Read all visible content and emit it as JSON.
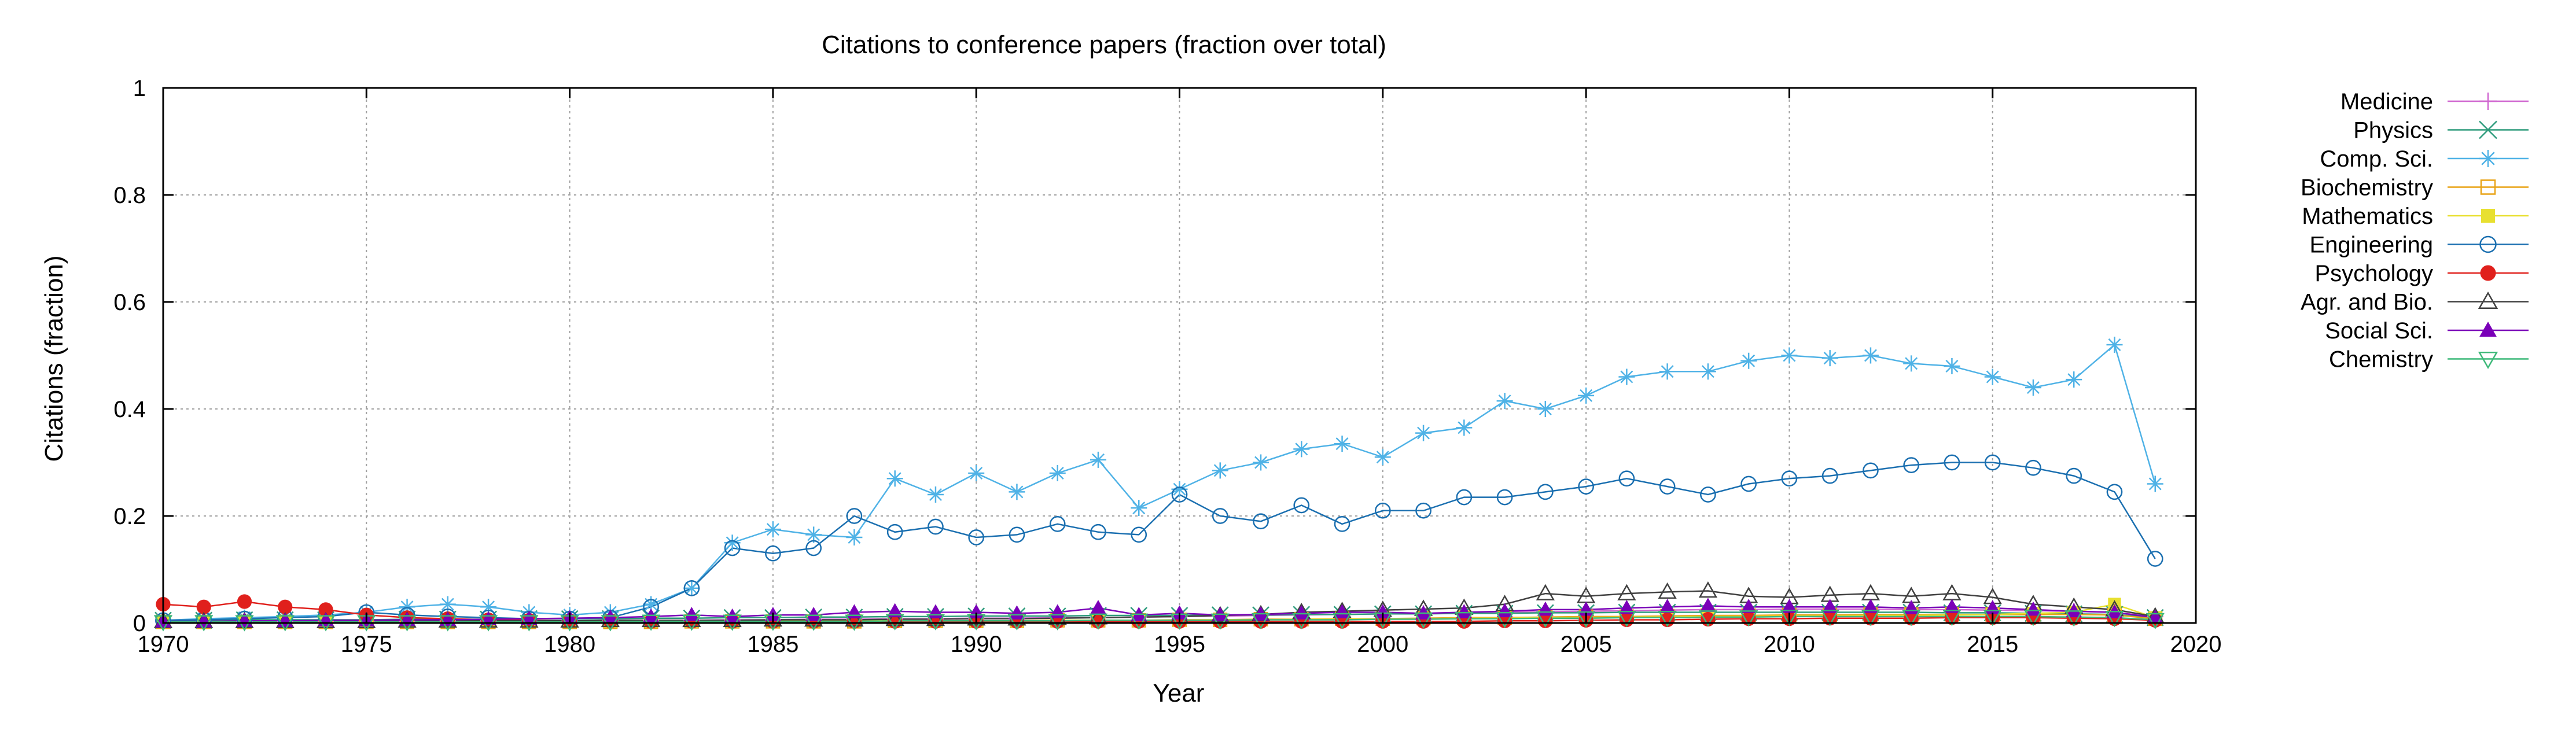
{
  "chart_data": {
    "type": "line",
    "title": "Citations to conference papers (fraction over total)",
    "xlabel": "Year",
    "ylabel": "Citations (fraction)",
    "xlim": [
      1970,
      2020
    ],
    "ylim": [
      0,
      1
    ],
    "xticks": [
      "1970",
      "1975",
      "1980",
      "1985",
      "1990",
      "1995",
      "2000",
      "2005",
      "2010",
      "2015",
      "2020"
    ],
    "yticks": [
      "0",
      "0.2",
      "0.4",
      "0.6",
      "0.8",
      "1"
    ],
    "grid": true,
    "legend_position": "outside-right",
    "x": [
      1970,
      1971,
      1972,
      1973,
      1974,
      1975,
      1976,
      1977,
      1978,
      1979,
      1980,
      1981,
      1982,
      1983,
      1984,
      1985,
      1986,
      1987,
      1988,
      1989,
      1990,
      1991,
      1992,
      1993,
      1994,
      1995,
      1996,
      1997,
      1998,
      1999,
      2000,
      2001,
      2002,
      2003,
      2004,
      2005,
      2006,
      2007,
      2008,
      2009,
      2010,
      2011,
      2012,
      2013,
      2014,
      2015,
      2016,
      2017,
      2018,
      2019
    ],
    "series": [
      {
        "name": "Medicine",
        "color": "#d066d0",
        "marker": "plus",
        "values": [
          0.002,
          0.003,
          0.003,
          0.003,
          0.003,
          0.003,
          0.003,
          0.004,
          0.004,
          0.004,
          0.004,
          0.005,
          0.005,
          0.005,
          0.006,
          0.006,
          0.007,
          0.007,
          0.008,
          0.008,
          0.009,
          0.009,
          0.01,
          0.01,
          0.011,
          0.012,
          0.013,
          0.014,
          0.015,
          0.016,
          0.017,
          0.018,
          0.019,
          0.02,
          0.021,
          0.022,
          0.023,
          0.024,
          0.025,
          0.025,
          0.026,
          0.026,
          0.026,
          0.025,
          0.025,
          0.024,
          0.023,
          0.022,
          0.02,
          0.012
        ]
      },
      {
        "name": "Physics",
        "color": "#2e9c7c",
        "marker": "x",
        "values": [
          0.005,
          0.005,
          0.006,
          0.006,
          0.006,
          0.006,
          0.007,
          0.007,
          0.007,
          0.008,
          0.008,
          0.008,
          0.009,
          0.009,
          0.01,
          0.01,
          0.011,
          0.011,
          0.012,
          0.012,
          0.013,
          0.013,
          0.013,
          0.014,
          0.014,
          0.014,
          0.015,
          0.015,
          0.016,
          0.016,
          0.017,
          0.017,
          0.018,
          0.018,
          0.019,
          0.019,
          0.02,
          0.02,
          0.02,
          0.02,
          0.02,
          0.02,
          0.02,
          0.02,
          0.019,
          0.019,
          0.018,
          0.017,
          0.016,
          0.01
        ]
      },
      {
        "name": "Comp. Sci.",
        "color": "#4fb2e6",
        "marker": "star",
        "values": [
          0.005,
          0.008,
          0.01,
          0.012,
          0.015,
          0.02,
          0.03,
          0.035,
          0.03,
          0.02,
          0.015,
          0.02,
          0.035,
          0.065,
          0.15,
          0.175,
          0.165,
          0.16,
          0.27,
          0.24,
          0.28,
          0.245,
          0.28,
          0.305,
          0.215,
          0.25,
          0.285,
          0.3,
          0.325,
          0.335,
          0.31,
          0.355,
          0.365,
          0.415,
          0.4,
          0.425,
          0.46,
          0.47,
          0.47,
          0.49,
          0.5,
          0.495,
          0.5,
          0.485,
          0.48,
          0.46,
          0.44,
          0.455,
          0.52,
          0.26
        ]
      },
      {
        "name": "Biochemistry",
        "color": "#e8a317",
        "marker": "open-square",
        "values": [
          0.002,
          0.002,
          0.002,
          0.002,
          0.002,
          0.002,
          0.002,
          0.002,
          0.002,
          0.002,
          0.002,
          0.002,
          0.002,
          0.003,
          0.003,
          0.003,
          0.003,
          0.003,
          0.004,
          0.004,
          0.004,
          0.004,
          0.005,
          0.005,
          0.005,
          0.006,
          0.006,
          0.007,
          0.007,
          0.008,
          0.008,
          0.009,
          0.01,
          0.01,
          0.011,
          0.012,
          0.012,
          0.013,
          0.014,
          0.014,
          0.015,
          0.015,
          0.016,
          0.016,
          0.016,
          0.016,
          0.016,
          0.016,
          0.015,
          0.008
        ]
      },
      {
        "name": "Mathematics",
        "color": "#e8e030",
        "marker": "filled-square",
        "values": [
          0.003,
          0.003,
          0.003,
          0.003,
          0.003,
          0.003,
          0.003,
          0.003,
          0.003,
          0.003,
          0.003,
          0.003,
          0.003,
          0.003,
          0.003,
          0.004,
          0.004,
          0.004,
          0.004,
          0.004,
          0.004,
          0.004,
          0.005,
          0.005,
          0.005,
          0.005,
          0.006,
          0.006,
          0.007,
          0.007,
          0.008,
          0.008,
          0.009,
          0.009,
          0.01,
          0.01,
          0.011,
          0.011,
          0.012,
          0.012,
          0.013,
          0.013,
          0.014,
          0.014,
          0.015,
          0.016,
          0.018,
          0.02,
          0.035,
          0.01
        ]
      },
      {
        "name": "Engineering",
        "color": "#1a6fb0",
        "marker": "open-circle",
        "values": [
          0.005,
          0.006,
          0.008,
          0.01,
          0.012,
          0.02,
          0.015,
          0.012,
          0.01,
          0.008,
          0.008,
          0.01,
          0.03,
          0.065,
          0.14,
          0.13,
          0.14,
          0.2,
          0.17,
          0.18,
          0.16,
          0.165,
          0.185,
          0.17,
          0.165,
          0.24,
          0.2,
          0.19,
          0.22,
          0.185,
          0.21,
          0.21,
          0.235,
          0.235,
          0.245,
          0.255,
          0.27,
          0.255,
          0.24,
          0.26,
          0.27,
          0.275,
          0.285,
          0.295,
          0.3,
          0.3,
          0.29,
          0.275,
          0.245,
          0.12
        ]
      },
      {
        "name": "Psychology",
        "color": "#e0201c",
        "marker": "filled-circle",
        "values": [
          0.035,
          0.03,
          0.04,
          0.03,
          0.025,
          0.015,
          0.01,
          0.008,
          0.006,
          0.005,
          0.004,
          0.004,
          0.003,
          0.003,
          0.003,
          0.003,
          0.003,
          0.003,
          0.003,
          0.003,
          0.003,
          0.003,
          0.003,
          0.003,
          0.003,
          0.003,
          0.003,
          0.003,
          0.003,
          0.003,
          0.003,
          0.003,
          0.003,
          0.004,
          0.004,
          0.005,
          0.006,
          0.006,
          0.007,
          0.008,
          0.008,
          0.009,
          0.009,
          0.009,
          0.01,
          0.01,
          0.01,
          0.009,
          0.008,
          0.005
        ]
      },
      {
        "name": "Agr. and Bio.",
        "color": "#404040",
        "marker": "open-triangle",
        "values": [
          0.003,
          0.003,
          0.003,
          0.003,
          0.003,
          0.003,
          0.004,
          0.004,
          0.004,
          0.004,
          0.004,
          0.005,
          0.005,
          0.005,
          0.005,
          0.006,
          0.006,
          0.006,
          0.007,
          0.007,
          0.008,
          0.008,
          0.009,
          0.01,
          0.011,
          0.012,
          0.014,
          0.016,
          0.02,
          0.022,
          0.024,
          0.026,
          0.028,
          0.035,
          0.055,
          0.05,
          0.055,
          0.058,
          0.06,
          0.05,
          0.048,
          0.052,
          0.055,
          0.05,
          0.055,
          0.048,
          0.035,
          0.03,
          0.025,
          0.012
        ]
      },
      {
        "name": "Social Sci.",
        "color": "#7a00b8",
        "marker": "filled-triangle",
        "values": [
          0.003,
          0.003,
          0.004,
          0.004,
          0.005,
          0.005,
          0.006,
          0.006,
          0.007,
          0.008,
          0.009,
          0.01,
          0.012,
          0.015,
          0.012,
          0.015,
          0.015,
          0.02,
          0.022,
          0.02,
          0.02,
          0.018,
          0.02,
          0.028,
          0.015,
          0.018,
          0.015,
          0.016,
          0.018,
          0.02,
          0.02,
          0.018,
          0.02,
          0.022,
          0.025,
          0.025,
          0.028,
          0.03,
          0.032,
          0.03,
          0.03,
          0.03,
          0.03,
          0.028,
          0.03,
          0.028,
          0.025,
          0.022,
          0.02,
          0.01
        ]
      },
      {
        "name": "Chemistry",
        "color": "#3cb878",
        "marker": "open-inverted-triangle",
        "values": [
          0.002,
          0.002,
          0.002,
          0.002,
          0.002,
          0.002,
          0.002,
          0.002,
          0.002,
          0.002,
          0.002,
          0.002,
          0.003,
          0.003,
          0.003,
          0.003,
          0.003,
          0.003,
          0.004,
          0.004,
          0.004,
          0.004,
          0.004,
          0.005,
          0.005,
          0.005,
          0.005,
          0.006,
          0.006,
          0.006,
          0.007,
          0.007,
          0.008,
          0.008,
          0.009,
          0.009,
          0.01,
          0.01,
          0.011,
          0.011,
          0.012,
          0.012,
          0.012,
          0.012,
          0.012,
          0.012,
          0.012,
          0.011,
          0.01,
          0.006
        ]
      }
    ]
  }
}
